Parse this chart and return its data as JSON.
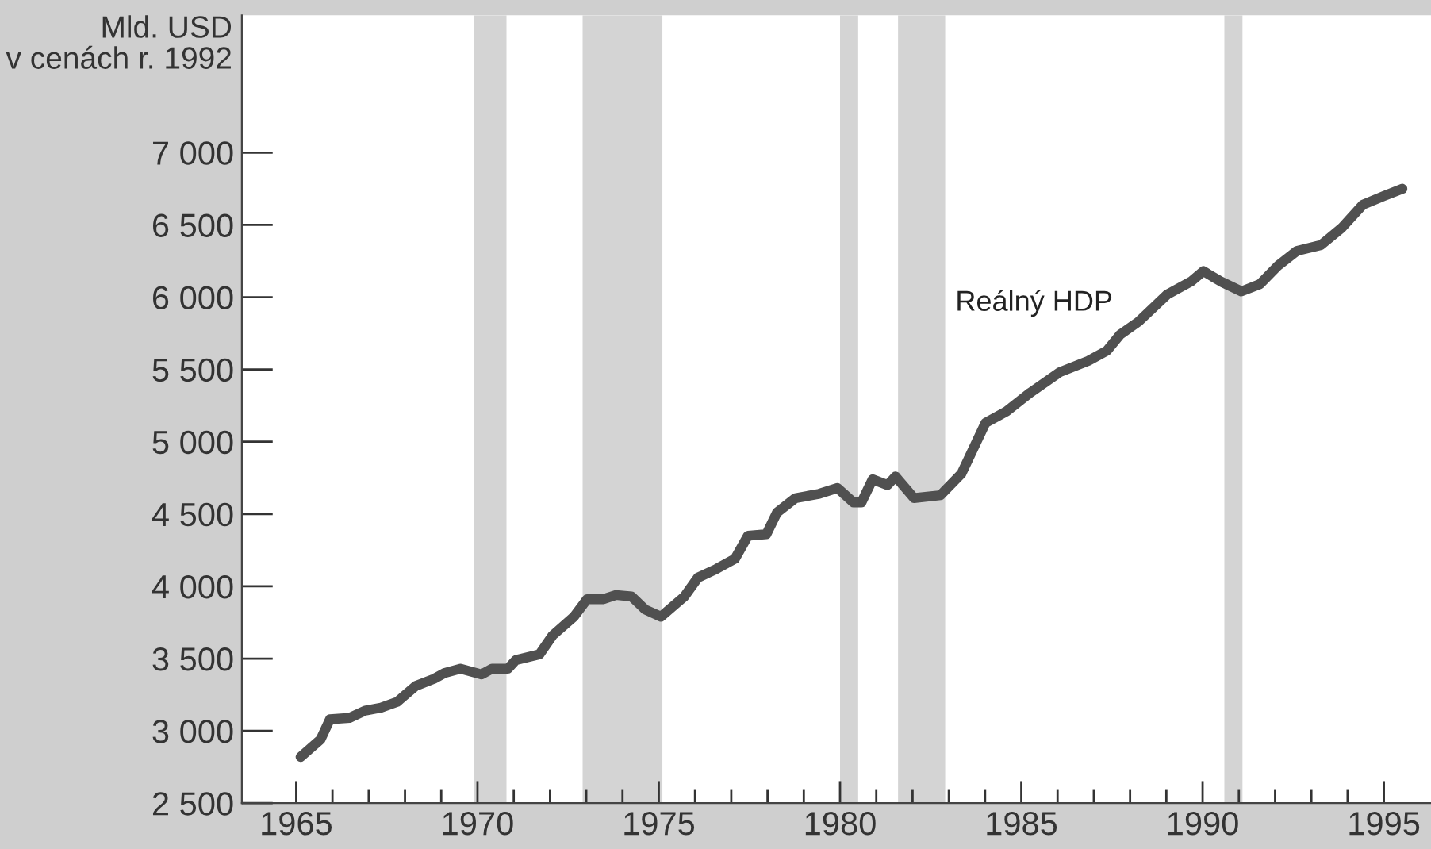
{
  "chart_data": {
    "type": "line",
    "ylabel": "Mld. USD\nv cenách r. 1992",
    "series": [
      {
        "name": "Reálný HDP",
        "color": "#505050",
        "x": [
          1965.12,
          1965.67,
          1965.93,
          1966.47,
          1966.9,
          1967.34,
          1967.78,
          1968.29,
          1968.8,
          1969.09,
          1969.53,
          1970.11,
          1970.4,
          1970.84,
          1971.06,
          1971.71,
          1972.07,
          1972.66,
          1973.02,
          1973.46,
          1973.82,
          1974.25,
          1974.62,
          1975.06,
          1975.71,
          1976.08,
          1976.59,
          1977.1,
          1977.46,
          1977.97,
          1978.26,
          1978.77,
          1979.43,
          1979.93,
          1980.37,
          1980.59,
          1980.9,
          1981.31,
          1981.53,
          1982.04,
          1982.77,
          1983.35,
          1984.01,
          1984.59,
          1985.25,
          1986.05,
          1986.85,
          1987.36,
          1987.72,
          1988.23,
          1989.03,
          1989.69,
          1990.02,
          1990.49,
          1991.07,
          1991.58,
          1992.09,
          1992.6,
          1993.26,
          1993.84,
          1994.42,
          1995.0,
          1995.51
        ],
        "values": [
          2820,
          2940,
          3080,
          3090,
          3140,
          3160,
          3200,
          3310,
          3360,
          3400,
          3430,
          3390,
          3430,
          3430,
          3490,
          3530,
          3660,
          3790,
          3910,
          3910,
          3940,
          3930,
          3840,
          3790,
          3930,
          4060,
          4120,
          4190,
          4350,
          4360,
          4510,
          4610,
          4640,
          4680,
          4580,
          4580,
          4740,
          4700,
          4760,
          4610,
          4630,
          4780,
          5130,
          5210,
          5340,
          5480,
          5560,
          5630,
          5740,
          5830,
          6020,
          6110,
          6180,
          6110,
          6040,
          6090,
          6220,
          6320,
          6360,
          6480,
          6640,
          6700,
          6750
        ]
      }
    ],
    "bands": [
      {
        "axis": "x",
        "from": 1969.9,
        "to": 1970.8,
        "color": "#d4d4d4"
      },
      {
        "axis": "x",
        "from": 1972.9,
        "to": 1975.1,
        "color": "#d4d4d4"
      },
      {
        "axis": "x",
        "from": 1980.0,
        "to": 1980.5,
        "color": "#d4d4d4"
      },
      {
        "axis": "x",
        "from": 1981.6,
        "to": 1982.9,
        "color": "#d4d4d4"
      },
      {
        "axis": "x",
        "from": 1990.6,
        "to": 1991.1,
        "color": "#d4d4d4"
      }
    ],
    "xlim": [
      1963.5,
      1996.3
    ],
    "ylim": [
      2500,
      7950
    ],
    "xticks": [
      1965,
      {
        "value": 1966,
        "label": null
      },
      {
        "value": 1967,
        "label": null
      },
      {
        "value": 1968,
        "label": null
      },
      {
        "value": 1969,
        "label": null
      },
      1970,
      {
        "value": 1971,
        "label": null
      },
      {
        "value": 1972,
        "label": null
      },
      {
        "value": 1973,
        "label": null
      },
      {
        "value": 1974,
        "label": null
      },
      1975,
      {
        "value": 1976,
        "label": null
      },
      {
        "value": 1977,
        "label": null
      },
      {
        "value": 1978,
        "label": null
      },
      {
        "value": 1979,
        "label": null
      },
      1980,
      {
        "value": 1981,
        "label": null
      },
      {
        "value": 1982,
        "label": null
      },
      {
        "value": 1983,
        "label": null
      },
      {
        "value": 1984,
        "label": null
      },
      1985,
      {
        "value": 1986,
        "label": null
      },
      {
        "value": 1987,
        "label": null
      },
      {
        "value": 1988,
        "label": null
      },
      {
        "value": 1989,
        "label": null
      },
      1990,
      {
        "value": 1991,
        "label": null
      },
      {
        "value": 1992,
        "label": null
      },
      {
        "value": 1993,
        "label": null
      },
      {
        "value": 1994,
        "label": null
      },
      1995
    ],
    "yticks": [
      {
        "value": 2500,
        "label": "2 500"
      },
      {
        "value": 3000,
        "label": "3 000"
      },
      {
        "value": 3500,
        "label": "3 500"
      },
      {
        "value": 4000,
        "label": "4 000"
      },
      {
        "value": 4500,
        "label": "4 500"
      },
      {
        "value": 5000,
        "label": "5 000"
      },
      {
        "value": 5500,
        "label": "5 500"
      },
      {
        "value": 6000,
        "label": "6 000"
      },
      {
        "value": 6500,
        "label": "6 500"
      },
      {
        "value": 7000,
        "label": "7 000"
      }
    ],
    "grid": false,
    "legend": false,
    "marker": "none",
    "line_style": "solid"
  }
}
